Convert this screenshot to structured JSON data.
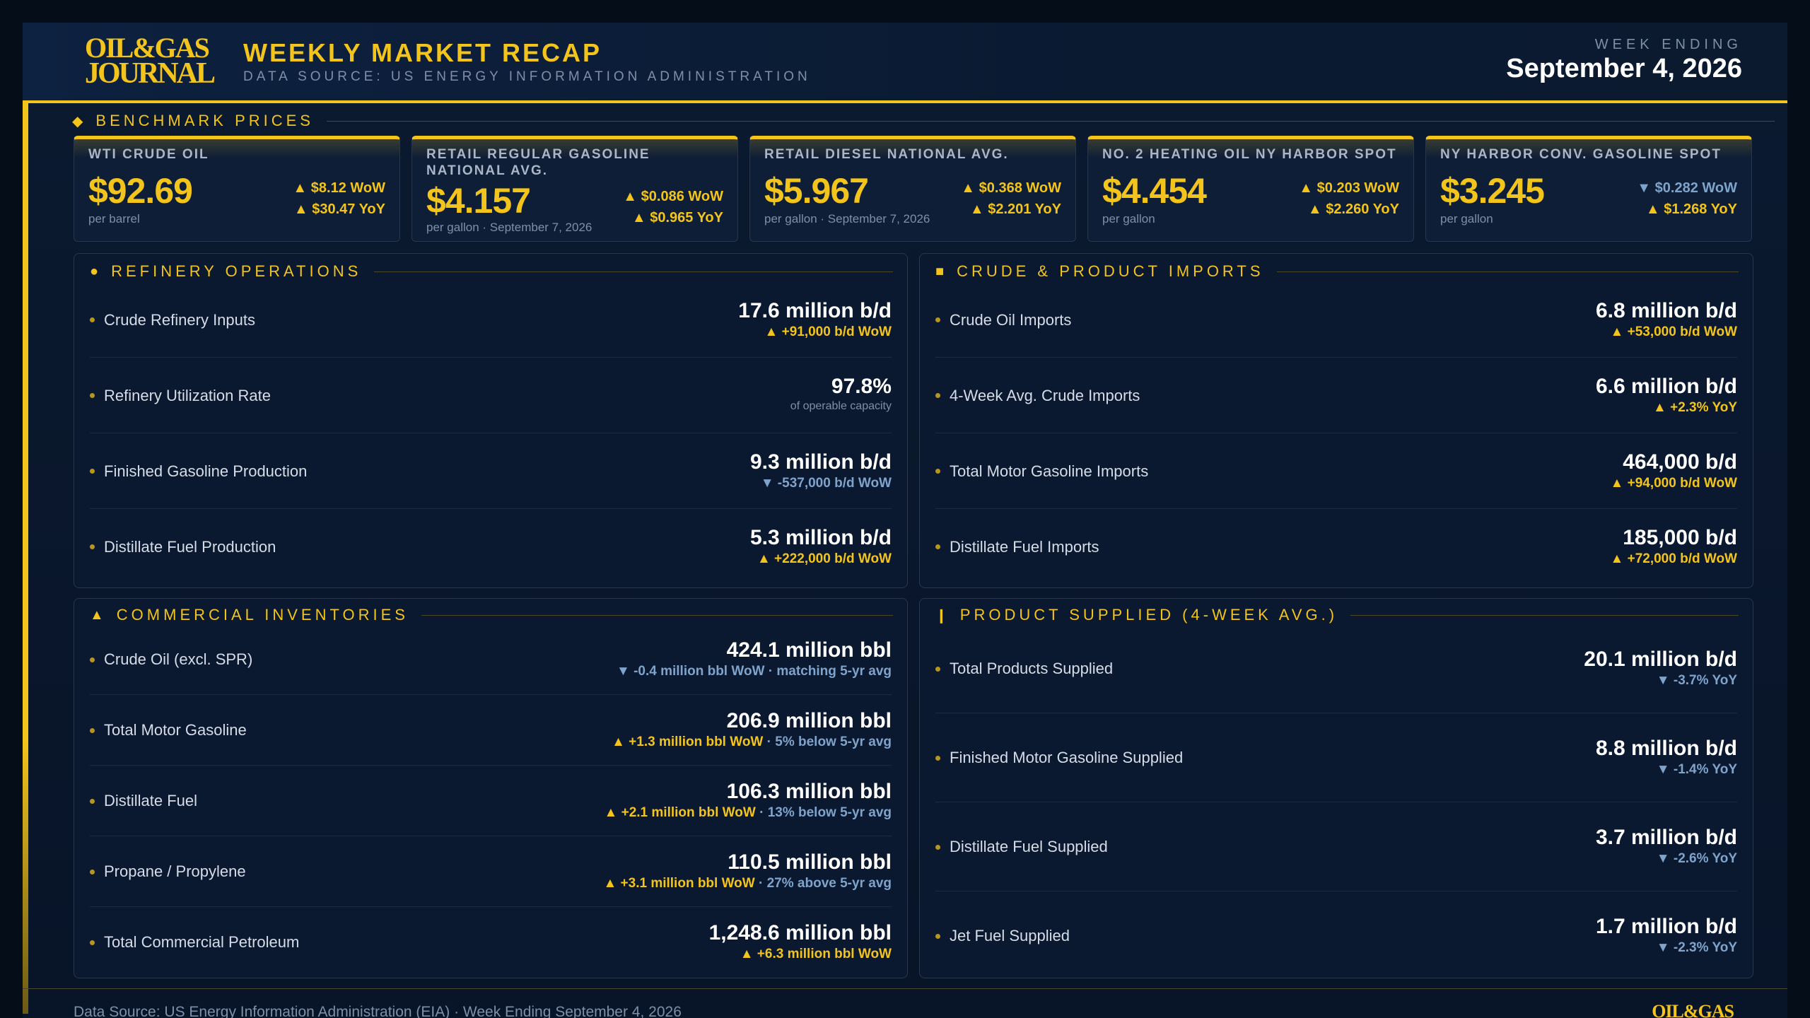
{
  "header": {
    "logo_line1": "OIL&GAS",
    "logo_line2": "JOURNAL",
    "title": "WEEKLY MARKET RECAP",
    "subtitle": "DATA SOURCE: US ENERGY INFORMATION ADMINISTRATION",
    "week_label": "WEEK ENDING",
    "week_date": "September 4, 2026"
  },
  "benchmark": {
    "heading": "BENCHMARK PRICES",
    "cards": [
      {
        "name": "WTI CRUDE OIL",
        "price": "$92.69",
        "unit": "per barrel",
        "wow": "▲ $8.12 WoW",
        "wow_dir": "up",
        "yoy": "▲ $30.47 YoY",
        "yoy_dir": "up"
      },
      {
        "name": "RETAIL REGULAR GASOLINE NATIONAL AVG.",
        "price": "$4.157",
        "unit": "per gallon · September 7, 2026",
        "wow": "▲ $0.086 WoW",
        "wow_dir": "up",
        "yoy": "▲ $0.965 YoY",
        "yoy_dir": "up"
      },
      {
        "name": "RETAIL DIESEL NATIONAL AVG.",
        "price": "$5.967",
        "unit": "per gallon · September 7, 2026",
        "wow": "▲ $0.368 WoW",
        "wow_dir": "up",
        "yoy": "▲ $2.201 YoY",
        "yoy_dir": "up"
      },
      {
        "name": "NO. 2 HEATING OIL NY HARBOR SPOT",
        "price": "$4.454",
        "unit": "per gallon",
        "wow": "▲ $0.203 WoW",
        "wow_dir": "up",
        "yoy": "▲ $2.260 YoY",
        "yoy_dir": "up"
      },
      {
        "name": "NY HARBOR CONV. GASOLINE SPOT",
        "price": "$3.245",
        "unit": "per gallon",
        "wow": "▼ $0.282 WoW",
        "wow_dir": "down",
        "yoy": "▲ $1.268 YoY",
        "yoy_dir": "up"
      }
    ]
  },
  "refinery": {
    "marker": "●",
    "heading": "REFINERY OPERATIONS",
    "rows": [
      {
        "label": "Crude Refinery Inputs",
        "value": "17.6 million b/d",
        "sub": "▲ +91,000 b/d WoW",
        "dir": "up"
      },
      {
        "label": "Refinery Utilization Rate",
        "value": "97.8%",
        "sub": "of operable capacity",
        "dir": "plain"
      },
      {
        "label": "Finished Gasoline Production",
        "value": "9.3 million b/d",
        "sub": "▼ -537,000 b/d WoW",
        "dir": "down"
      },
      {
        "label": "Distillate Fuel Production",
        "value": "5.3 million b/d",
        "sub": "▲ +222,000 b/d WoW",
        "dir": "up"
      }
    ]
  },
  "imports": {
    "marker": "■",
    "heading": "CRUDE & PRODUCT IMPORTS",
    "rows": [
      {
        "label": "Crude Oil Imports",
        "value": "6.8 million b/d",
        "sub": "▲ +53,000 b/d WoW",
        "dir": "up"
      },
      {
        "label": "4-Week Avg. Crude Imports",
        "value": "6.6 million b/d",
        "sub": "▲ +2.3% YoY",
        "dir": "up"
      },
      {
        "label": "Total Motor Gasoline Imports",
        "value": "464,000 b/d",
        "sub": "▲ +94,000 b/d WoW",
        "dir": "up"
      },
      {
        "label": "Distillate Fuel Imports",
        "value": "185,000 b/d",
        "sub": "▲ +72,000 b/d WoW",
        "dir": "up"
      }
    ]
  },
  "inventories": {
    "marker": "▲",
    "heading": "COMMERCIAL INVENTORIES",
    "rows": [
      {
        "label": "Crude Oil (excl. SPR)",
        "value": "424.1 million bbl",
        "sub_a": "▼ -0.4 million bbl WoW",
        "dir_a": "down",
        "sub_b": " · matching 5-yr avg"
      },
      {
        "label": "Total Motor Gasoline",
        "value": "206.9 million bbl",
        "sub_a": "▲ +1.3 million bbl WoW",
        "dir_a": "up",
        "sub_b": " · 5% below 5-yr avg"
      },
      {
        "label": "Distillate Fuel",
        "value": "106.3 million bbl",
        "sub_a": "▲ +2.1 million bbl WoW",
        "dir_a": "up",
        "sub_b": " · 13% below 5-yr avg"
      },
      {
        "label": "Propane / Propylene",
        "value": "110.5 million bbl",
        "sub_a": "▲ +3.1 million bbl WoW",
        "dir_a": "up",
        "sub_b": " · 27% above 5-yr avg"
      },
      {
        "label": "Total Commercial Petroleum",
        "value": "1,248.6 million bbl",
        "sub_a": "▲ +6.3 million bbl WoW",
        "dir_a": "up",
        "sub_b": ""
      }
    ]
  },
  "supplied": {
    "marker": "❙",
    "heading": "PRODUCT SUPPLIED (4-WEEK AVG.)",
    "rows": [
      {
        "label": "Total Products Supplied",
        "value": "20.1 million b/d",
        "sub": "▼ -3.7% YoY",
        "dir": "down"
      },
      {
        "label": "Finished Motor Gasoline Supplied",
        "value": "8.8 million b/d",
        "sub": "▼ -1.4% YoY",
        "dir": "down"
      },
      {
        "label": "Distillate Fuel Supplied",
        "value": "3.7 million b/d",
        "sub": "▼ -2.6% YoY",
        "dir": "down"
      },
      {
        "label": "Jet Fuel Supplied",
        "value": "1.7 million b/d",
        "sub": "▼ -2.3% YoY",
        "dir": "down"
      }
    ]
  },
  "footer": {
    "text": "Data Source: US Energy Information Administration (EIA)  ·  Week Ending September 4, 2026",
    "logo": "OIL&GAS"
  },
  "colors": {
    "accent": "#f3c41b",
    "down": "#7fa4cc",
    "panel": "#0a1830",
    "background": "#050d18"
  }
}
